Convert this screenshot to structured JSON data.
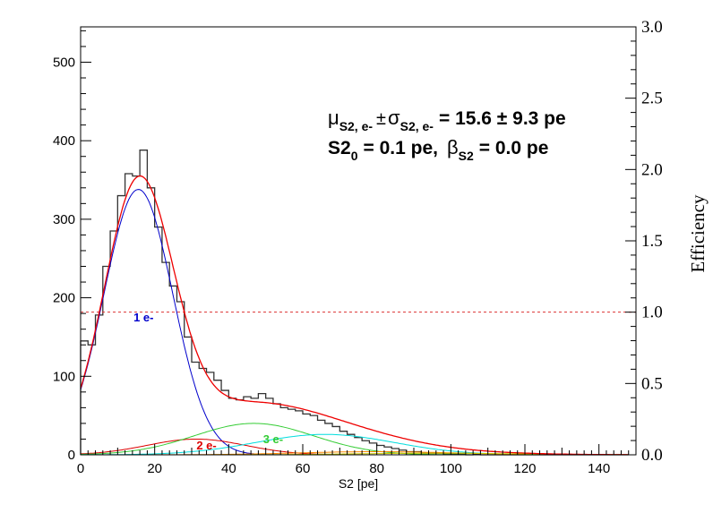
{
  "chart_data": {
    "type": "line",
    "xlabel": "S2 [pe]",
    "ylabel": "",
    "y2label": "Efficiency",
    "xlim": [
      0,
      150
    ],
    "ylim": [
      0,
      545
    ],
    "y2lim": [
      0,
      3.0
    ],
    "x_ticks": [
      "0",
      "20",
      "40",
      "60",
      "80",
      "100",
      "120",
      "140"
    ],
    "x_tick_values": [
      0,
      20,
      40,
      60,
      80,
      100,
      120,
      140
    ],
    "y_ticks": [
      "0",
      "100",
      "200",
      "300",
      "400",
      "500"
    ],
    "y_tick_values": [
      0,
      100,
      200,
      300,
      400,
      500
    ],
    "y2_ticks": [
      "0.0",
      "0.5",
      "1.0",
      "1.5",
      "2.0",
      "2.5",
      "3.0"
    ],
    "y2_tick_values": [
      0,
      0.5,
      1.0,
      1.5,
      2.0,
      2.5,
      3.0
    ],
    "annotation": {
      "line1_mu": "μ",
      "line1_sub1": "S2, e-",
      "line1_pm": "±",
      "line1_sigma": "σ",
      "line1_sub2": "S2, e-",
      "line1_rest": "= 15.6 ± 9.3 pe",
      "line2_a": "S2",
      "line2_sub0": "0",
      "line2_b": "= 0.1 pe,",
      "line2_beta": "β",
      "line2_subs2": "S2",
      "line2_c": "= 0.0 pe"
    },
    "histogram": {
      "bin_width": 2,
      "x_start": 0,
      "values": [
        145,
        140,
        178,
        240,
        285,
        330,
        358,
        355,
        388,
        340,
        290,
        245,
        215,
        195,
        150,
        118,
        110,
        105,
        95,
        82,
        72,
        70,
        74,
        72,
        78,
        72,
        65,
        60,
        58,
        56,
        52,
        50,
        44,
        40,
        36,
        30,
        26,
        22,
        18,
        15,
        12,
        10,
        8,
        6,
        4,
        4,
        2,
        2,
        2,
        1,
        1,
        1,
        0,
        1,
        0,
        0,
        0,
        0,
        0,
        0,
        0,
        0,
        0,
        0,
        0,
        0,
        0,
        0,
        0,
        0,
        0,
        0,
        0,
        0
      ]
    },
    "series": [
      {
        "name": "1 e-",
        "color": "#0000cc",
        "type": "gaussian",
        "amplitude": 338,
        "mean": 15.6,
        "sigma": 9.3
      },
      {
        "name": "2 e-",
        "color": "#dd0000",
        "type": "gaussian",
        "amplitude": 20,
        "mean": 31.2,
        "sigma": 13.2
      },
      {
        "name": "3 e-",
        "color": "#33cc33",
        "type": "gaussian",
        "amplitude": 40,
        "mean": 46.8,
        "sigma": 16.1
      },
      {
        "color": "#00dddd",
        "type": "gaussian",
        "amplitude": 26,
        "mean": 66,
        "sigma": 18.6
      },
      {
        "color": "#ff8800",
        "type": "gaussian",
        "amplitude": 4,
        "mean": 80,
        "sigma": 20.8
      },
      {
        "color": "#cccc00",
        "type": "gaussian",
        "amplitude": 2,
        "mean": 96,
        "sigma": 22.8
      }
    ],
    "total_fit": {
      "color": "#ee0000"
    },
    "histogram_color": "#333333",
    "efficiency_line": {
      "value": 1.0,
      "color": "#dd3333",
      "style": "dashed"
    },
    "labels": [
      {
        "text": "1 e-",
        "color": "#0000cc",
        "x": 17,
        "y": 170
      },
      {
        "text": "2 e-",
        "color": "#dd0000",
        "x": 34,
        "y": 7
      },
      {
        "text": "3 e-",
        "color": "#33cc33",
        "x": 52,
        "y": 15
      }
    ]
  }
}
